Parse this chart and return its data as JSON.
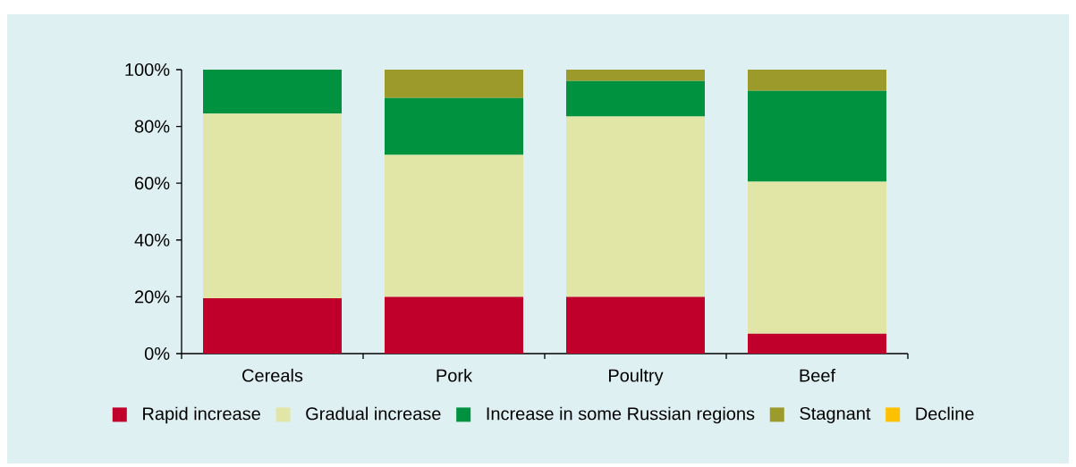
{
  "chart_data": {
    "type": "bar",
    "stacked": true,
    "categories": [
      "Cereals",
      "Pork",
      "Poultry",
      "Beef"
    ],
    "series": [
      {
        "name": "Rapid increase",
        "color": "#c0002a",
        "values": [
          19.5,
          20,
          20,
          7
        ]
      },
      {
        "name": "Gradual increase",
        "color": "#e1e6a6",
        "values": [
          65,
          50,
          63.5,
          53.5
        ]
      },
      {
        "name": "Increase in some Russian regions",
        "color": "#00923f",
        "values": [
          15.5,
          20,
          12.5,
          32
        ]
      },
      {
        "name": "Stagnant",
        "color": "#9c9a2a",
        "values": [
          0,
          10,
          4,
          7.5
        ]
      },
      {
        "name": "Decline",
        "color": "#ffc000",
        "values": [
          0,
          0,
          0,
          0
        ]
      }
    ],
    "ylim": [
      0,
      100
    ],
    "yticks": [
      {
        "value": 0,
        "label": "0%"
      },
      {
        "value": 20,
        "label": "20%"
      },
      {
        "value": 40,
        "label": "40%"
      },
      {
        "value": 60,
        "label": "60%"
      },
      {
        "value": 80,
        "label": "80%"
      },
      {
        "value": 100,
        "label": "100%"
      }
    ],
    "grid": false,
    "legend": "bottom"
  }
}
